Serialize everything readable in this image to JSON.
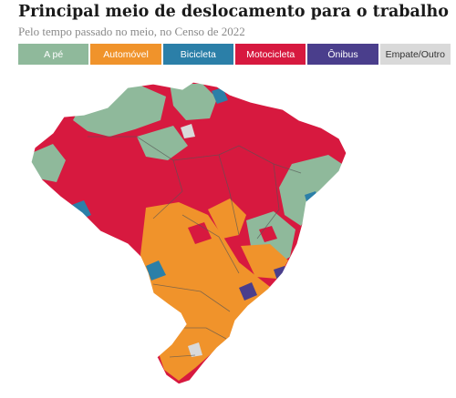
{
  "header": {
    "title": "Principal meio de deslocamento para o trabalho",
    "subtitle": "Pelo tempo passado no meio, no Censo de 2022"
  },
  "legend": [
    {
      "label": "A pé",
      "color": "#8fb99b"
    },
    {
      "label": "Automóvel",
      "color": "#f0932b"
    },
    {
      "label": "Bicicleta",
      "color": "#2b7fa8"
    },
    {
      "label": "Motocicleta",
      "color": "#d7193f"
    },
    {
      "label": "Ônibus",
      "color": "#4a3e8c"
    },
    {
      "label": "Empate/Outro",
      "color": "#d9d9d9"
    }
  ],
  "map": {
    "subject": "Brazil municipalities",
    "colors": {
      "walk": "#8fb99b",
      "car": "#f0932b",
      "bike": "#2b7fa8",
      "moto": "#d7193f",
      "bus": "#4a3e8c",
      "tie": "#d9d9d9",
      "border": "#ffffff",
      "state_border": "#555555"
    }
  }
}
